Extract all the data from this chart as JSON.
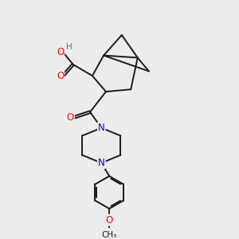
{
  "background_color": "#eaecee",
  "bond_color": "#1a1a1a",
  "atom_colors": {
    "O": "#ff0000",
    "N": "#0000cc",
    "H": "#408080",
    "C": "#1a1a1a"
  },
  "font_size_atoms": 8.5,
  "figsize": [
    3.0,
    3.0
  ],
  "dpi": 100
}
